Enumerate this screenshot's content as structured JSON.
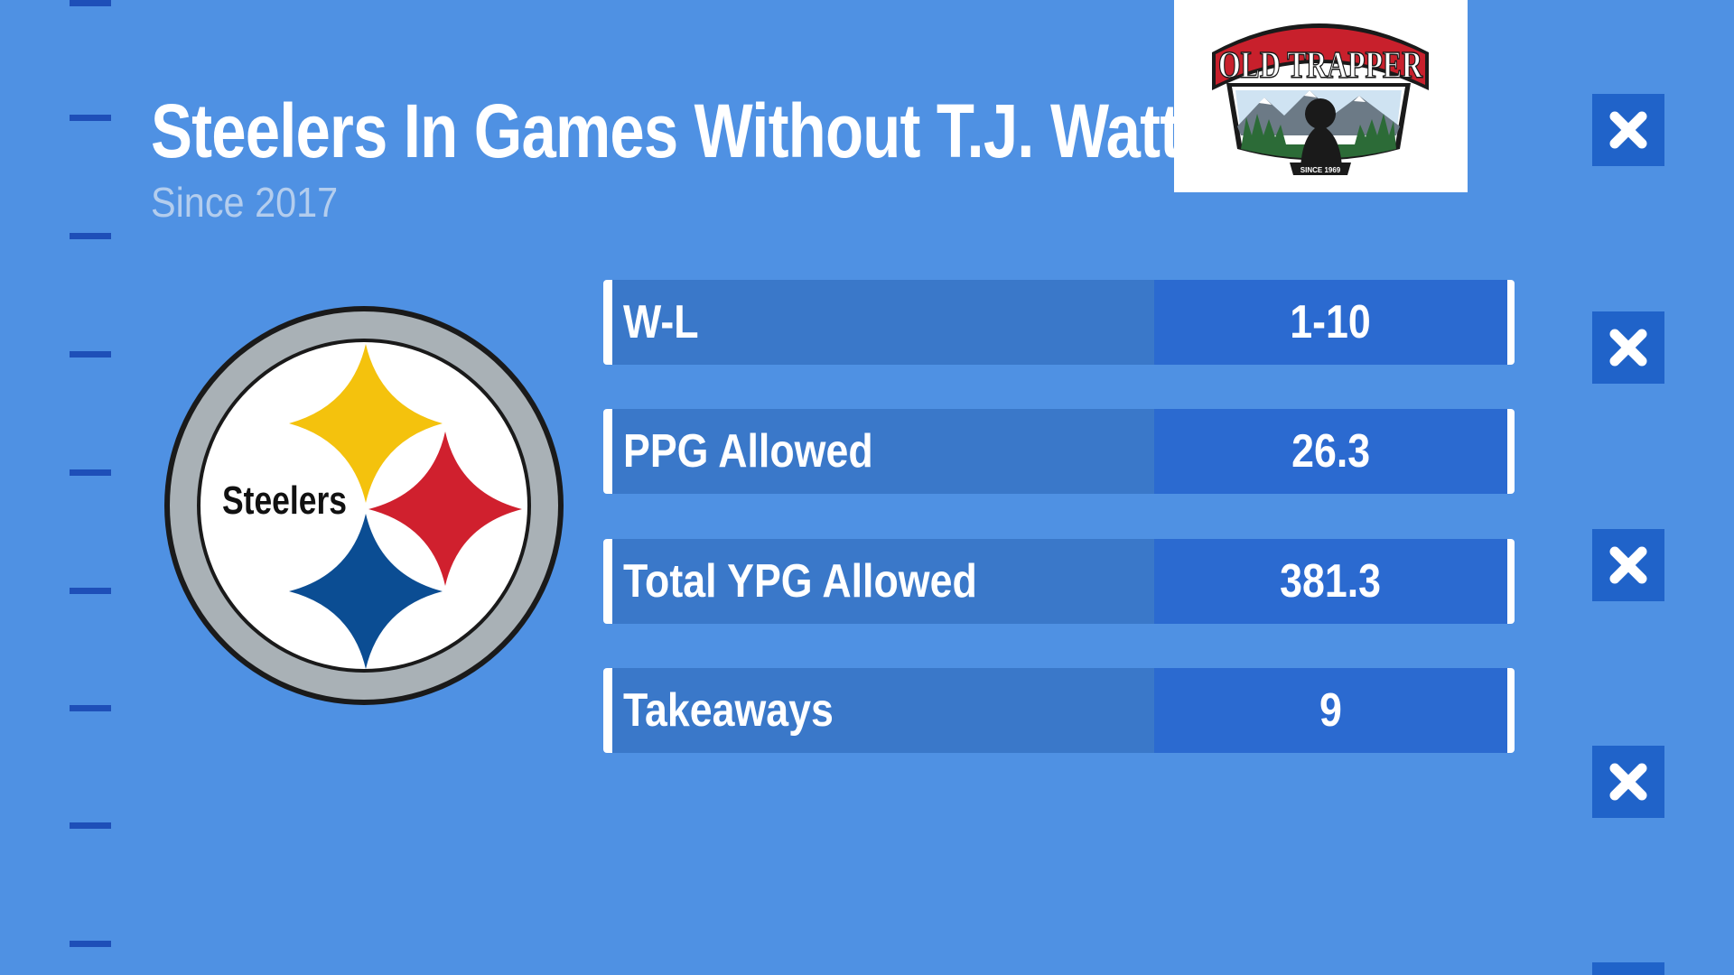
{
  "header": {
    "title": "Steelers In Games Without T.J. Watt",
    "subtitle": "Since 2017"
  },
  "sponsor": {
    "logo_text": "OLD TRAPPER",
    "logo_tagline": "SINCE 1969"
  },
  "team": {
    "logo_text": "Steelers",
    "colors": {
      "gold": "#f4c20d",
      "red": "#d0202e",
      "blue": "#0b4d93",
      "ring": "#a9b1b6"
    }
  },
  "stats": [
    {
      "label": "W-L",
      "value": "1-10"
    },
    {
      "label": "PPG Allowed",
      "value": "26.3"
    },
    {
      "label": "Total YPG Allowed",
      "value": "381.3"
    },
    {
      "label": "Takeaways",
      "value": "9"
    }
  ],
  "decor": {
    "background": "#4f91e3",
    "yard_marker_color": "#1e4fb8",
    "x_marker_icon": "close-icon"
  }
}
